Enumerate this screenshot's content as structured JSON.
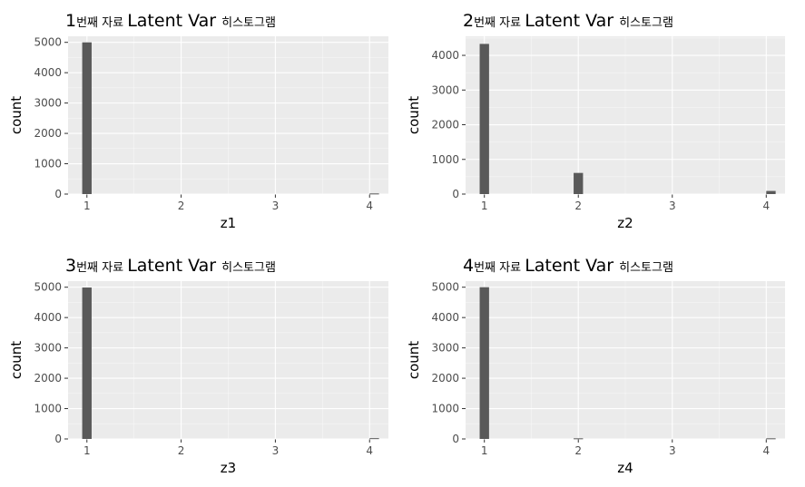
{
  "chart_data": [
    {
      "type": "bar",
      "title_num": "1",
      "title_mid": "번째 자료",
      "title_big": "Latent Var",
      "title_end": "히스토그램",
      "xlabel": "z1",
      "ylabel": "count",
      "xlim": [
        0.8,
        4.2
      ],
      "ylim": [
        0,
        5200
      ],
      "xticks": [
        1,
        2,
        3,
        4
      ],
      "xtick_labels": [
        "1",
        "2",
        "3",
        "4"
      ],
      "yticks": [
        0,
        1000,
        2000,
        3000,
        4000,
        5000
      ],
      "ytick_labels": [
        "0",
        "1000",
        "2000",
        "3000",
        "4000",
        "5000"
      ],
      "bin_width": 0.1,
      "x": [
        1,
        4.05
      ],
      "values": [
        5000,
        20
      ]
    },
    {
      "type": "bar",
      "title_num": "2",
      "title_mid": "번째 자료",
      "title_big": "Latent Var",
      "title_end": "히스토그램",
      "xlabel": "z2",
      "ylabel": "count",
      "xlim": [
        0.8,
        4.2
      ],
      "ylim": [
        0,
        4550
      ],
      "xticks": [
        1,
        2,
        3,
        4
      ],
      "xtick_labels": [
        "1",
        "2",
        "3",
        "4"
      ],
      "yticks": [
        0,
        1000,
        2000,
        3000,
        4000
      ],
      "ytick_labels": [
        "0",
        "1000",
        "2000",
        "3000",
        "4000"
      ],
      "bin_width": 0.1,
      "x": [
        1,
        2,
        4.05
      ],
      "values": [
        4330,
        610,
        90
      ]
    },
    {
      "type": "bar",
      "title_num": "3",
      "title_mid": "번째 자료",
      "title_big": "Latent Var",
      "title_end": "히스토그램",
      "xlabel": "z3",
      "ylabel": "count",
      "xlim": [
        0.8,
        4.2
      ],
      "ylim": [
        0,
        5200
      ],
      "xticks": [
        1,
        2,
        3,
        4
      ],
      "xtick_labels": [
        "1",
        "2",
        "3",
        "4"
      ],
      "yticks": [
        0,
        1000,
        2000,
        3000,
        4000,
        5000
      ],
      "ytick_labels": [
        "0",
        "1000",
        "2000",
        "3000",
        "4000",
        "5000"
      ],
      "bin_width": 0.1,
      "x": [
        1,
        4.05
      ],
      "values": [
        4990,
        25
      ]
    },
    {
      "type": "bar",
      "title_num": "4",
      "title_mid": "번째 자료",
      "title_big": "Latent Var",
      "title_end": "히스토그램",
      "xlabel": "z4",
      "ylabel": "count",
      "xlim": [
        0.8,
        4.2
      ],
      "ylim": [
        0,
        5200
      ],
      "xticks": [
        1,
        2,
        3,
        4
      ],
      "xtick_labels": [
        "1",
        "2",
        "3",
        "4"
      ],
      "yticks": [
        0,
        1000,
        2000,
        3000,
        4000,
        5000
      ],
      "ytick_labels": [
        "0",
        "1000",
        "2000",
        "3000",
        "4000",
        "5000"
      ],
      "bin_width": 0.1,
      "x": [
        1,
        2,
        4.05
      ],
      "values": [
        5000,
        20,
        20
      ]
    }
  ],
  "colors": {
    "panel_bg": "#ebebeb",
    "grid_major": "#ffffff",
    "bar_fill": "#595959",
    "axis_text": "#4d4d4d",
    "label_text": "#000000"
  }
}
